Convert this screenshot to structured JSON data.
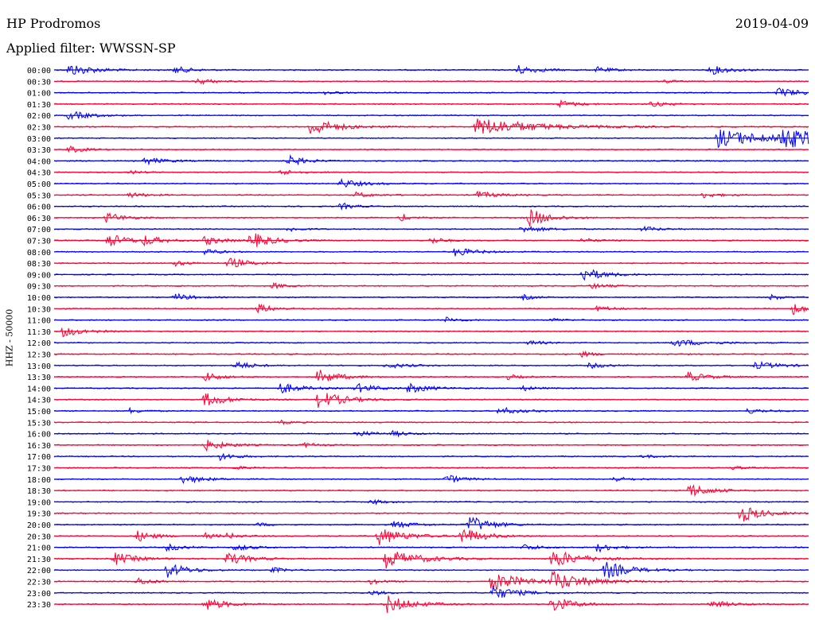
{
  "header": {
    "station": "HP Prodromos",
    "filter": "Applied filter: WWSSN-SP",
    "date": "2019-04-09"
  },
  "chart_data": {
    "type": "line",
    "title": "HP Prodromos",
    "subtitle": "Applied filter: WWSSN-SP",
    "date": "2019-04-09",
    "ylabel": "HHZ - 50000",
    "colors": {
      "even_traces": "#0000ff",
      "odd_traces": "#ff0033"
    },
    "row_labels": [
      "00:00",
      "00:30",
      "01:00",
      "01:30",
      "02:00",
      "02:30",
      "03:00",
      "03:30",
      "04:00",
      "04:30",
      "05:00",
      "05:30",
      "06:00",
      "06:30",
      "07:00",
      "07:30",
      "08:00",
      "08:30",
      "09:00",
      "09:30",
      "10:00",
      "10:30",
      "11:00",
      "11:30",
      "12:00",
      "12:30",
      "13:00",
      "13:30",
      "14:00",
      "14:30",
      "15:00",
      "15:30",
      "16:00",
      "16:30",
      "17:00",
      "17:30",
      "18:00",
      "18:30",
      "19:00",
      "19:30",
      "20:00",
      "20:30",
      "21:00",
      "21:30",
      "22:00",
      "22:30",
      "23:00",
      "23:30"
    ],
    "series_events": [
      [
        [
          0.02,
          0.7,
          0.06
        ],
        [
          0.16,
          0.4,
          0.04
        ],
        [
          0.61,
          0.6,
          0.05
        ],
        [
          0.72,
          0.3,
          0.04
        ],
        [
          0.87,
          0.5,
          0.05
        ]
      ],
      [
        [
          0.19,
          0.35,
          0.04
        ],
        [
          0.81,
          0.2,
          0.02
        ]
      ],
      [
        [
          0.36,
          0.2,
          0.03
        ],
        [
          0.96,
          0.6,
          0.05
        ]
      ],
      [
        [
          0.67,
          0.4,
          0.04
        ],
        [
          0.79,
          0.3,
          0.04
        ]
      ],
      [
        [
          0.02,
          0.5,
          0.05
        ]
      ],
      [
        [
          0.34,
          1.0,
          0.06
        ],
        [
          0.56,
          1.0,
          0.14
        ]
      ],
      [
        [
          0.88,
          1.0,
          0.12
        ],
        [
          0.96,
          1.0,
          0.12
        ]
      ],
      [
        [
          0.02,
          0.35,
          0.04
        ]
      ],
      [
        [
          0.12,
          0.4,
          0.05
        ],
        [
          0.31,
          0.6,
          0.04
        ]
      ],
      [
        [
          0.1,
          0.2,
          0.03
        ],
        [
          0.3,
          0.3,
          0.04
        ]
      ],
      [
        [
          0.38,
          0.5,
          0.05
        ]
      ],
      [
        [
          0.1,
          0.3,
          0.04
        ],
        [
          0.4,
          0.3,
          0.04
        ],
        [
          0.56,
          0.4,
          0.05
        ],
        [
          0.86,
          0.3,
          0.04
        ]
      ],
      [
        [
          0.38,
          0.4,
          0.03
        ]
      ],
      [
        [
          0.07,
          0.6,
          0.04
        ],
        [
          0.46,
          0.5,
          0.02
        ],
        [
          0.63,
          1.0,
          0.05
        ]
      ],
      [
        [
          0.31,
          0.3,
          0.03
        ],
        [
          0.62,
          0.4,
          0.05
        ],
        [
          0.78,
          0.3,
          0.04
        ]
      ],
      [
        [
          0.07,
          0.8,
          0.05
        ],
        [
          0.12,
          0.5,
          0.04
        ],
        [
          0.2,
          0.5,
          0.04
        ],
        [
          0.26,
          0.9,
          0.05
        ],
        [
          0.5,
          0.4,
          0.03
        ],
        [
          0.7,
          0.3,
          0.03
        ]
      ],
      [
        [
          0.2,
          0.4,
          0.03
        ],
        [
          0.53,
          0.5,
          0.05
        ]
      ],
      [
        [
          0.16,
          0.3,
          0.03
        ],
        [
          0.23,
          0.6,
          0.05
        ]
      ],
      [
        [
          0.7,
          0.8,
          0.05
        ]
      ],
      [
        [
          0.29,
          0.3,
          0.03
        ],
        [
          0.71,
          0.3,
          0.04
        ]
      ],
      [
        [
          0.16,
          0.4,
          0.04
        ],
        [
          0.62,
          0.3,
          0.03
        ],
        [
          0.95,
          0.3,
          0.03
        ]
      ],
      [
        [
          0.27,
          0.5,
          0.04
        ],
        [
          0.72,
          0.3,
          0.04
        ],
        [
          0.98,
          0.7,
          0.03
        ]
      ],
      [
        [
          0.52,
          0.3,
          0.03
        ],
        [
          0.66,
          0.2,
          0.03
        ]
      ],
      [
        [
          0.01,
          0.6,
          0.05
        ]
      ],
      [
        [
          0.63,
          0.3,
          0.03
        ],
        [
          0.82,
          0.4,
          0.08
        ]
      ],
      [
        [
          0.7,
          0.3,
          0.03
        ]
      ],
      [
        [
          0.24,
          0.5,
          0.04
        ],
        [
          0.44,
          0.3,
          0.05
        ],
        [
          0.71,
          0.3,
          0.04
        ],
        [
          0.93,
          0.4,
          0.06
        ]
      ],
      [
        [
          0.2,
          0.5,
          0.04
        ],
        [
          0.35,
          0.8,
          0.05
        ],
        [
          0.6,
          0.3,
          0.03
        ],
        [
          0.84,
          0.5,
          0.05
        ]
      ],
      [
        [
          0.3,
          0.6,
          0.05
        ],
        [
          0.4,
          0.5,
          0.05
        ],
        [
          0.47,
          0.5,
          0.05
        ],
        [
          0.62,
          0.3,
          0.03
        ]
      ],
      [
        [
          0.2,
          0.8,
          0.05
        ],
        [
          0.35,
          1.0,
          0.06
        ]
      ],
      [
        [
          0.1,
          0.3,
          0.03
        ],
        [
          0.59,
          0.4,
          0.05
        ],
        [
          0.92,
          0.3,
          0.04
        ]
      ],
      [
        [
          0.3,
          0.2,
          0.03
        ]
      ],
      [
        [
          0.4,
          0.3,
          0.05
        ],
        [
          0.45,
          0.3,
          0.03
        ]
      ],
      [
        [
          0.2,
          0.6,
          0.05
        ],
        [
          0.33,
          0.3,
          0.03
        ]
      ],
      [
        [
          0.22,
          0.4,
          0.04
        ],
        [
          0.78,
          0.2,
          0.03
        ]
      ],
      [
        [
          0.24,
          0.2,
          0.03
        ],
        [
          0.9,
          0.2,
          0.03
        ]
      ],
      [
        [
          0.17,
          0.5,
          0.05
        ],
        [
          0.52,
          0.5,
          0.04
        ],
        [
          0.74,
          0.3,
          0.04
        ]
      ],
      [
        [
          0.84,
          0.8,
          0.05
        ]
      ],
      [
        [
          0.42,
          0.3,
          0.03
        ]
      ],
      [
        [
          0.91,
          1.0,
          0.05
        ]
      ],
      [
        [
          0.27,
          0.2,
          0.03
        ],
        [
          0.45,
          0.4,
          0.05
        ],
        [
          0.55,
          1.0,
          0.05
        ]
      ],
      [
        [
          0.11,
          0.6,
          0.04
        ],
        [
          0.2,
          0.3,
          0.03
        ],
        [
          0.23,
          0.3,
          0.03
        ],
        [
          0.43,
          1.0,
          0.06
        ],
        [
          0.54,
          1.0,
          0.05
        ]
      ],
      [
        [
          0.15,
          0.4,
          0.04
        ],
        [
          0.24,
          0.4,
          0.04
        ],
        [
          0.62,
          0.4,
          0.04
        ],
        [
          0.72,
          0.5,
          0.04
        ]
      ],
      [
        [
          0.08,
          0.7,
          0.05
        ],
        [
          0.23,
          0.7,
          0.05
        ],
        [
          0.44,
          1.0,
          0.08
        ],
        [
          0.66,
          1.0,
          0.07
        ]
      ],
      [
        [
          0.15,
          0.8,
          0.05
        ],
        [
          0.29,
          0.3,
          0.03
        ],
        [
          0.73,
          1.0,
          0.06
        ]
      ],
      [
        [
          0.11,
          0.4,
          0.04
        ],
        [
          0.42,
          0.3,
          0.03
        ],
        [
          0.58,
          1.0,
          0.08
        ],
        [
          0.66,
          1.0,
          0.08
        ]
      ],
      [
        [
          0.42,
          0.3,
          0.03
        ],
        [
          0.58,
          0.8,
          0.06
        ]
      ],
      [
        [
          0.2,
          0.7,
          0.05
        ],
        [
          0.44,
          1.0,
          0.06
        ],
        [
          0.66,
          0.9,
          0.05
        ],
        [
          0.87,
          0.4,
          0.05
        ]
      ]
    ]
  }
}
